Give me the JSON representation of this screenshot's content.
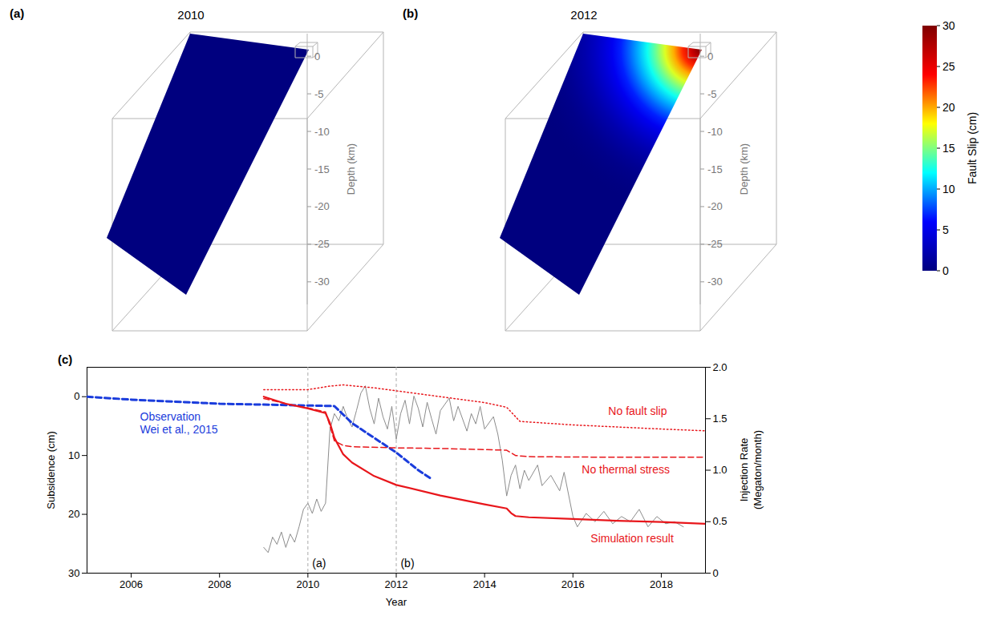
{
  "chart_data": [
    {
      "type": "fault_slip_3d",
      "panel": "(a)",
      "title": "2010",
      "zlabel": "Depth (km)",
      "zlim": [
        -33,
        3
      ],
      "zticks": [
        0,
        -5,
        -10,
        -15,
        -20,
        -25,
        -30
      ],
      "max_slip": 0
    },
    {
      "type": "fault_slip_3d",
      "panel": "(b)",
      "title": "2012",
      "zlabel": "Depth (km)",
      "zlim": [
        -33,
        3
      ],
      "zticks": [
        0,
        -5,
        -10,
        -15,
        -20,
        -25,
        -30
      ],
      "max_slip": 30,
      "colorbar": {
        "label": "Fault Slip (cm)",
        "range": [
          0,
          30
        ],
        "ticks": [
          0,
          5,
          10,
          15,
          20,
          25,
          30
        ]
      }
    },
    {
      "type": "line",
      "panel": "(c)",
      "xlabel": "Year",
      "ylabel": "Subsidence (cm)",
      "y2label": "Injection Rate (Megaton/month)",
      "xlim": [
        2005,
        2019
      ],
      "xticks": [
        2006,
        2008,
        2010,
        2012,
        2014,
        2016,
        2018
      ],
      "ylim": [
        30,
        -5
      ],
      "yticks": [
        0,
        10,
        20,
        30
      ],
      "y2lim": [
        0,
        2
      ],
      "y2ticks": [
        0,
        0.5,
        {
          "value": 1,
          "label": "1.0"
        },
        1.5,
        {
          "value": 2,
          "label": "2.0"
        }
      ],
      "vlines": [
        {
          "x": 2010,
          "text": "(a)"
        },
        {
          "x": 2012,
          "text": "(b)"
        }
      ],
      "series": [
        {
          "color": "#1a3cdc",
          "line_style": "dashed",
          "x": [
            2005,
            2006,
            2008,
            2010,
            2010.6,
            2011,
            2011.5,
            2012,
            2012.5,
            2012.8
          ],
          "values": [
            0,
            0.5,
            1.2,
            1.5,
            1.6,
            4.5,
            7,
            9.5,
            12.5,
            14
          ]
        },
        {
          "color": "#e8161b",
          "line_style": "solid",
          "x": [
            2009,
            2009.5,
            2010,
            2010.4,
            2010.5,
            2010.6,
            2010.8,
            2011,
            2011.5,
            2012,
            2013,
            2014,
            2014.5,
            2014.6,
            2014.7,
            2015,
            2016,
            2017,
            2018,
            2019
          ],
          "values": [
            0,
            1.2,
            2,
            2.8,
            4.5,
            7,
            9.8,
            11.2,
            13.5,
            15,
            16.8,
            18.3,
            19,
            19.8,
            20.3,
            20.5,
            20.8,
            21.1,
            21.3,
            21.6
          ]
        },
        {
          "color": "#e8161b",
          "line_style": "dashed",
          "x": [
            2009,
            2009.5,
            2010,
            2010.4,
            2010.5,
            2010.6,
            2010.8,
            2011,
            2012,
            2013,
            2014,
            2014.5,
            2014.7,
            2015,
            2017,
            2019
          ],
          "values": [
            0.3,
            1.2,
            1.9,
            2.6,
            5,
            7.5,
            8.3,
            8.5,
            8.7,
            8.8,
            9,
            9.1,
            10,
            10.2,
            10.3,
            10.3
          ]
        },
        {
          "color": "#e8161b",
          "line_style": "dotted",
          "x": [
            2009,
            2010,
            2010.5,
            2010.8,
            2011.5,
            2012,
            2013,
            2014,
            2014.5,
            2014.8,
            2016,
            2018,
            2019
          ],
          "values": [
            -1.2,
            -1.2,
            -1.8,
            -2,
            -1.5,
            -1,
            0,
            1,
            1.8,
            4.2,
            4.8,
            5.5,
            5.8
          ]
        },
        {
          "color": "#8c8c8c",
          "line_style": "solid",
          "axis": "y2",
          "x": [
            2009.0,
            2009.1,
            2009.2,
            2009.3,
            2009.4,
            2009.5,
            2009.6,
            2009.7,
            2009.8,
            2009.9,
            2010.0,
            2010.1,
            2010.2,
            2010.3,
            2010.4,
            2010.5,
            2010.6,
            2010.7,
            2010.8,
            2010.9,
            2011.0,
            2011.1,
            2011.2,
            2011.3,
            2011.4,
            2011.5,
            2011.6,
            2011.7,
            2011.8,
            2011.9,
            2012.0,
            2012.1,
            2012.2,
            2012.3,
            2012.4,
            2012.5,
            2012.6,
            2012.7,
            2012.8,
            2012.9,
            2013.0,
            2013.2,
            2013.3,
            2013.4,
            2013.6,
            2013.7,
            2013.8,
            2013.9,
            2014.0,
            2014.2,
            2014.3,
            2014.4,
            2014.5,
            2014.6,
            2014.7,
            2014.8,
            2014.9,
            2015.0,
            2015.2,
            2015.3,
            2015.5,
            2015.7,
            2015.8,
            2016.0,
            2016.1,
            2016.3,
            2016.5,
            2016.7,
            2016.9,
            2017.1,
            2017.3,
            2017.5,
            2017.7,
            2017.9,
            2018.1,
            2018.3,
            2018.5
          ],
          "values": [
            0.25,
            0.2,
            0.35,
            0.28,
            0.4,
            0.25,
            0.38,
            0.3,
            0.45,
            0.62,
            0.68,
            0.58,
            0.72,
            0.6,
            0.68,
            1.4,
            1.55,
            1.48,
            1.62,
            1.5,
            1.42,
            1.58,
            1.75,
            1.82,
            1.6,
            1.45,
            1.7,
            1.52,
            1.4,
            1.62,
            1.3,
            1.55,
            1.68,
            1.45,
            1.72,
            1.6,
            1.42,
            1.66,
            1.5,
            1.35,
            1.58,
            1.7,
            1.48,
            1.62,
            1.38,
            1.55,
            1.45,
            1.62,
            1.4,
            1.52,
            1.35,
            1.1,
            0.75,
            0.95,
            1.05,
            0.82,
            1.0,
            0.9,
            1.05,
            0.85,
            0.95,
            0.8,
            0.98,
            0.55,
            0.45,
            0.58,
            0.5,
            0.6,
            0.48,
            0.55,
            0.5,
            0.62,
            0.45,
            0.55,
            0.48,
            0.5,
            0.45
          ]
        }
      ],
      "annotations": [
        {
          "text": "Observation\nWei et al., 2015",
          "x": 2006.2,
          "y": 4.4,
          "color": "#1a3cdc"
        },
        {
          "text": "No fault slip",
          "x": 2016.8,
          "y": 2.4,
          "color": "#e8161b"
        },
        {
          "text": "No thermal stress",
          "x": 2016.2,
          "y": 12.3,
          "color": "#e8161b"
        },
        {
          "text": "Simulation result",
          "x": 2016.4,
          "y": 24,
          "color": "#e8161b"
        }
      ]
    }
  ]
}
